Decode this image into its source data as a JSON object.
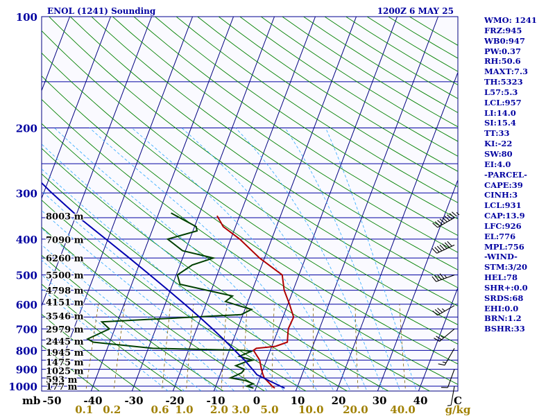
{
  "header": {
    "title": "ENOL (1241) Sounding",
    "time": "1200Z  6 MAY 25"
  },
  "indices": [
    "WMO: 1241",
    "FRZ:945",
    "WB0:947",
    "PW:0.37",
    "RH:50.6",
    "MAXT:7.3",
    "TH:5323",
    "L57:5.3",
    "LCL:957",
    "LI:14.0",
    "SI:15.4",
    "TT:33",
    "KI:-22",
    "SW:80",
    "EI:4.0",
    "-PARCEL-",
    "CAPE:39",
    "CINH:3",
    "LCL:931",
    "CAP:13.9",
    "LFC:926",
    "EL:776",
    "MPL:756",
    "-WIND-",
    "STM:3/20",
    "HEL:78",
    "SHR+:0.0",
    "SRDS:68",
    "EHI:0.0",
    "BRN:1.2",
    "BSHR:33"
  ],
  "colors": {
    "background": "#ffffff",
    "plot_bg": "#fafaff",
    "isobar": "#0000a0",
    "isotherm": "#000080",
    "dry_adiabat": "#008000",
    "moist_adiabat": "#40b0ff",
    "mixing_ratio": "#806000",
    "temperature": "#b00000",
    "dewpoint": "#004000",
    "parcel": "#0000b0",
    "label_text": "#000000",
    "blue_text": "#0000a0",
    "gold_text": "#a08000"
  },
  "chart_data": {
    "type": "skew-t log-p",
    "pressure_axis": {
      "ticks": [
        100,
        200,
        300,
        400,
        500,
        600,
        700,
        800,
        900,
        1000
      ],
      "unit": "mb",
      "range": [
        100,
        1050
      ],
      "scale": "log"
    },
    "isobars_drawn": [
      100,
      150,
      200,
      250,
      300,
      350,
      400,
      450,
      500,
      550,
      600,
      650,
      700,
      750,
      800,
      850,
      900,
      950,
      1000
    ],
    "temperature_axis": {
      "ticks": [
        -50,
        -40,
        -30,
        -20,
        -10,
        0,
        10,
        20,
        30,
        40
      ],
      "end_label": "C",
      "skew": true
    },
    "mixing_ratio_axis": {
      "ticks": [
        "0.1",
        "0.2",
        "0.6",
        "1.0",
        "2.0",
        "3.0",
        "5.0",
        "10.0",
        "20.0",
        "40.0"
      ],
      "unit": "g/kg"
    },
    "height_labels": [
      {
        "p": 346,
        "text": "8003 m"
      },
      {
        "p": 401,
        "text": "7090 m"
      },
      {
        "p": 450,
        "text": "6260 m"
      },
      {
        "p": 500,
        "text": "5500 m"
      },
      {
        "p": 550,
        "text": "4798 m"
      },
      {
        "p": 592,
        "text": "4151 m"
      },
      {
        "p": 645,
        "text": "3546 m"
      },
      {
        "p": 700,
        "text": "2979 m"
      },
      {
        "p": 755,
        "text": "2445 m"
      },
      {
        "p": 810,
        "text": "1945 m"
      },
      {
        "p": 860,
        "text": "1475 m"
      },
      {
        "p": 908,
        "text": "1025 m"
      },
      {
        "p": 958,
        "text": "593 m"
      },
      {
        "p": 1000,
        "text": "177 m"
      }
    ],
    "series": [
      {
        "points": [
          [
            1012,
            4.6
          ],
          [
            1000,
            3.8
          ],
          [
            950,
            1.1
          ],
          [
            925,
            0.3
          ],
          [
            900,
            -0.4
          ],
          [
            850,
            -1.7
          ],
          [
            800,
            -4.1
          ],
          [
            790,
            -3.6
          ],
          [
            780,
            0.9
          ],
          [
            760,
            3.4
          ],
          [
            730,
            2.9
          ],
          [
            700,
            2.4
          ],
          [
            650,
            2.6
          ],
          [
            600,
            0.4
          ],
          [
            550,
            -2.2
          ],
          [
            500,
            -4.1
          ],
          [
            450,
            -11.2
          ],
          [
            400,
            -17.8
          ],
          [
            370,
            -23.0
          ],
          [
            346,
            -25.5
          ]
        ]
      },
      {
        "points": [
          [
            1012,
            -0.6
          ],
          [
            1000,
            -2.4
          ],
          [
            985,
            -1.1
          ],
          [
            965,
            -3.3
          ],
          [
            950,
            -7.2
          ],
          [
            935,
            -6.0
          ],
          [
            920,
            -4.9
          ],
          [
            900,
            -4.6
          ],
          [
            880,
            -7.0
          ],
          [
            860,
            -5.0
          ],
          [
            850,
            -3.4
          ],
          [
            830,
            -7.0
          ],
          [
            805,
            -4.6
          ],
          [
            800,
            -6.5
          ],
          [
            790,
            -28.9
          ],
          [
            760,
            -44.0
          ],
          [
            745,
            -45.7
          ],
          [
            700,
            -41.3
          ],
          [
            670,
            -43.8
          ],
          [
            660,
            -32.9
          ],
          [
            640,
            -10.4
          ],
          [
            620,
            -8.4
          ],
          [
            610,
            -10.8
          ],
          [
            590,
            -15.5
          ],
          [
            570,
            -14.3
          ],
          [
            530,
            -28.2
          ],
          [
            500,
            -29.7
          ],
          [
            470,
            -27.0
          ],
          [
            450,
            -22.5
          ],
          [
            430,
            -30.7
          ],
          [
            400,
            -35.4
          ],
          [
            380,
            -29.0
          ],
          [
            370,
            -29.6
          ],
          [
            340,
            -37.0
          ]
        ]
      },
      {
        "points": [
          [
            1012,
            7.0
          ],
          [
            1000,
            5.8
          ],
          [
            950,
            0.9
          ],
          [
            931,
            -1.0
          ],
          [
            900,
            -2.6
          ],
          [
            850,
            -5.4
          ],
          [
            800,
            -8.7
          ],
          [
            750,
            -12.2
          ],
          [
            700,
            -16.1
          ],
          [
            650,
            -20.4
          ],
          [
            600,
            -25.2
          ],
          [
            550,
            -30.5
          ],
          [
            500,
            -36.4
          ],
          [
            450,
            -43.0
          ],
          [
            400,
            -50.5
          ],
          [
            350,
            -59.0
          ],
          [
            300,
            -68.0
          ],
          [
            250,
            -78.0
          ],
          [
            200,
            -90.0
          ],
          [
            150,
            -103.5
          ],
          [
            120,
            -113.5
          ]
        ]
      }
    ],
    "wind_barbs": [
      {
        "p": 350,
        "dir": 240,
        "speed_kt": 95
      },
      {
        "p": 415,
        "dir": 245,
        "speed_kt": 70
      },
      {
        "p": 500,
        "dir": 250,
        "speed_kt": 45
      },
      {
        "p": 605,
        "dir": 240,
        "speed_kt": 35
      },
      {
        "p": 700,
        "dir": 230,
        "speed_kt": 25
      },
      {
        "p": 790,
        "dir": 210,
        "speed_kt": 15
      },
      {
        "p": 900,
        "dir": 200,
        "speed_kt": 10
      },
      {
        "p": 1000,
        "dir": 190,
        "speed_kt": 5
      }
    ]
  }
}
